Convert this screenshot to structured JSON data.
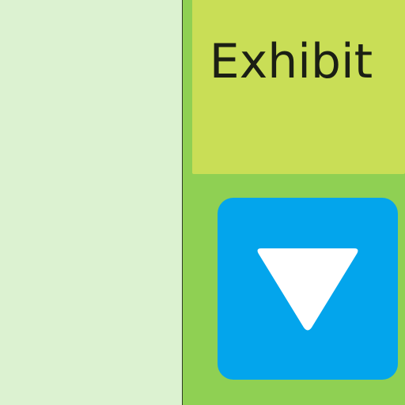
{
  "exhibit_tile": {
    "label": "Exhibit"
  },
  "dropdown_button": {
    "icon": "triangle-down-icon"
  },
  "colors": {
    "left_panel": "#dcf2d1",
    "right_panel": "#8fd053",
    "exhibit_tile": "#c9de56",
    "button": "#03a5ec",
    "icon": "#ffffff",
    "text": "#1b1f14"
  }
}
